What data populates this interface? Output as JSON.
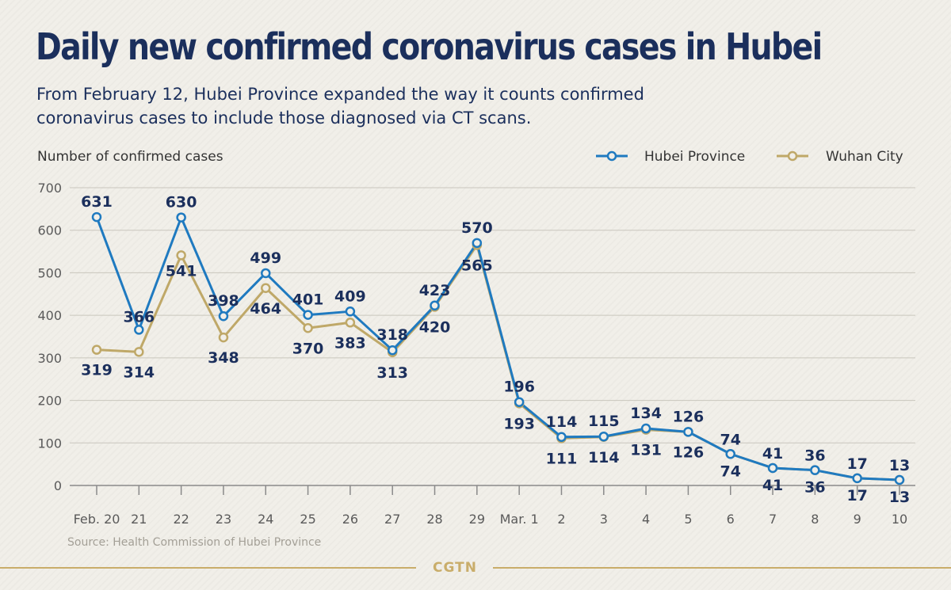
{
  "header": {
    "title": "Daily new confirmed coronavirus cases in Hubei",
    "subtitle_line1": "From February 12, Hubei Province expanded the way it counts confirmed",
    "subtitle_line2": "coronavirus cases to include those diagnosed via CT scans."
  },
  "chart_data": {
    "type": "line",
    "title": "Daily new confirmed coronavirus cases in Hubei",
    "ylabel": "Number of confirmed cases",
    "xlabel": "",
    "ylim": [
      0,
      700
    ],
    "yticks": [
      0,
      100,
      200,
      300,
      400,
      500,
      600,
      700
    ],
    "grid": true,
    "legend_position": "top-right",
    "categories": [
      "Feb. 20",
      "21",
      "22",
      "23",
      "24",
      "25",
      "26",
      "27",
      "28",
      "29",
      "Mar. 1",
      "2",
      "3",
      "4",
      "5",
      "6",
      "7",
      "8",
      "9",
      "10"
    ],
    "series": [
      {
        "name": "Hubei Province",
        "color": "#1f7ac0",
        "values": [
          631,
          366,
          630,
          398,
          499,
          401,
          409,
          318,
          423,
          570,
          196,
          114,
          115,
          134,
          126,
          74,
          41,
          36,
          17,
          13
        ]
      },
      {
        "name": "Wuhan City",
        "color": "#bfa868",
        "values": [
          319,
          314,
          541,
          348,
          464,
          370,
          383,
          313,
          420,
          565,
          193,
          111,
          114,
          131,
          126,
          74,
          41,
          36,
          17,
          13
        ]
      }
    ]
  },
  "footer": {
    "source": "Source: Health Commission of Hubei Province",
    "brand": "CGTN"
  }
}
